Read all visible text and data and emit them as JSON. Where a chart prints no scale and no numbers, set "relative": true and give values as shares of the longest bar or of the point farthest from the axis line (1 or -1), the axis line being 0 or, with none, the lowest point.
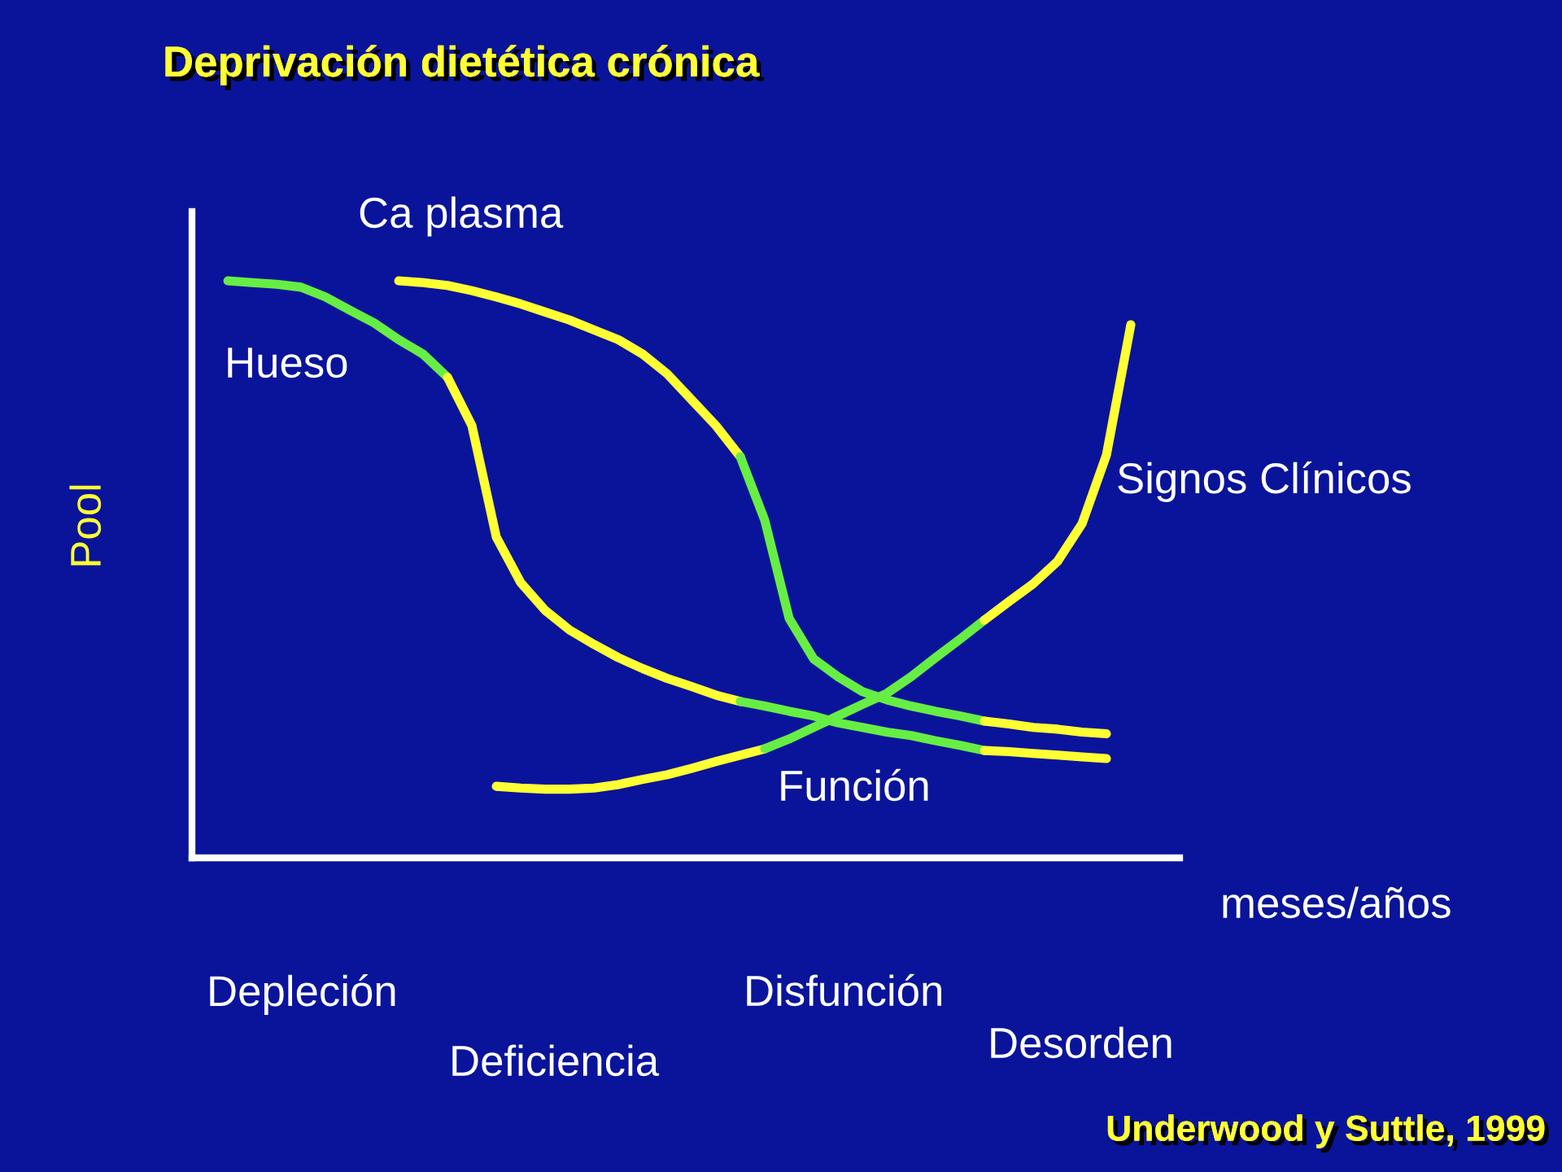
{
  "chart_data": {
    "type": "line",
    "relative": true,
    "title": "Deprivación dietética crónica",
    "xlabel": "meses/años",
    "ylabel": "Pool",
    "categories": [
      null,
      null,
      null,
      null,
      null,
      null,
      null,
      null,
      null,
      null,
      null,
      null,
      null,
      null,
      null,
      null,
      null,
      null,
      null,
      null,
      null,
      null,
      null,
      null,
      null,
      null,
      null,
      null,
      null,
      null,
      null,
      null,
      null,
      null,
      null,
      null,
      null,
      null
    ],
    "series": [
      {
        "color": "#66ee44",
        "values": [
          1.0,
          0.997,
          0.994,
          0.989,
          0.972,
          0.949,
          0.927,
          0.898,
          0.873,
          0.833,
          null,
          null,
          null,
          null,
          null,
          null,
          null,
          null,
          null,
          null,
          null,
          null,
          null,
          null,
          null,
          null,
          null,
          null,
          null,
          null,
          null,
          null,
          null,
          null,
          null,
          null,
          null,
          null
        ]
      },
      {
        "color": "#ffff33",
        "values": [
          null,
          null,
          null,
          null,
          null,
          null,
          null,
          null,
          null,
          0.833,
          0.749,
          0.556,
          0.477,
          0.429,
          0.395,
          0.37,
          0.347,
          0.328,
          0.311,
          0.297,
          0.282,
          0.271,
          null,
          null,
          null,
          null,
          null,
          null,
          null,
          null,
          null,
          null,
          null,
          null,
          null,
          null,
          null,
          null
        ]
      },
      {
        "color": "#66ee44",
        "values": [
          null,
          null,
          null,
          null,
          null,
          null,
          null,
          null,
          null,
          null,
          null,
          null,
          null,
          null,
          null,
          null,
          null,
          null,
          null,
          null,
          null,
          0.271,
          0.263,
          0.254,
          0.246,
          0.234,
          0.226,
          0.218,
          0.212,
          0.203,
          0.195,
          0.186,
          null,
          null,
          null,
          null,
          null,
          null
        ]
      },
      {
        "color": "#ffff33",
        "values": [
          null,
          null,
          null,
          null,
          null,
          null,
          null,
          null,
          null,
          null,
          null,
          null,
          null,
          null,
          null,
          null,
          null,
          null,
          null,
          null,
          null,
          null,
          null,
          null,
          null,
          null,
          null,
          null,
          null,
          null,
          null,
          0.186,
          0.184,
          0.181,
          0.178,
          0.175,
          0.172,
          null
        ]
      },
      {
        "color": "#ffff33",
        "values": [
          null,
          null,
          null,
          null,
          null,
          null,
          null,
          1.0,
          0.997,
          0.992,
          0.983,
          0.972,
          0.96,
          0.946,
          0.932,
          0.915,
          0.898,
          0.873,
          0.839,
          0.794,
          0.749,
          0.695,
          null,
          null,
          null,
          null,
          null,
          null,
          null,
          null,
          null,
          null,
          null,
          null,
          null,
          null,
          null,
          null
        ]
      },
      {
        "color": "#66ee44",
        "values": [
          null,
          null,
          null,
          null,
          null,
          null,
          null,
          null,
          null,
          null,
          null,
          null,
          null,
          null,
          null,
          null,
          null,
          null,
          null,
          null,
          null,
          0.695,
          0.585,
          0.415,
          0.345,
          0.314,
          0.288,
          0.274,
          0.263,
          0.254,
          0.246,
          0.237,
          null,
          null,
          null,
          null,
          null,
          null
        ]
      },
      {
        "color": "#ffff33",
        "values": [
          null,
          null,
          null,
          null,
          null,
          null,
          null,
          null,
          null,
          null,
          null,
          null,
          null,
          null,
          null,
          null,
          null,
          null,
          null,
          null,
          null,
          null,
          null,
          null,
          null,
          null,
          null,
          null,
          null,
          null,
          null,
          0.237,
          0.232,
          0.226,
          0.223,
          0.218,
          0.215,
          null
        ]
      },
      {
        "color": "#ffff33",
        "values": [
          null,
          null,
          null,
          null,
          null,
          null,
          null,
          null,
          null,
          null,
          null,
          0.124,
          0.121,
          0.119,
          0.119,
          0.121,
          0.127,
          0.136,
          0.144,
          0.155,
          0.167,
          0.178,
          0.189,
          null,
          null,
          null,
          null,
          null,
          null,
          null,
          null,
          null,
          null,
          null,
          null,
          null,
          null,
          null
        ]
      },
      {
        "color": "#66ee44",
        "values": [
          null,
          null,
          null,
          null,
          null,
          null,
          null,
          null,
          null,
          null,
          null,
          null,
          null,
          null,
          null,
          null,
          null,
          null,
          null,
          null,
          null,
          null,
          0.189,
          0.206,
          0.226,
          0.246,
          0.266,
          0.285,
          0.314,
          0.347,
          0.379,
          0.412,
          null,
          null,
          null,
          null,
          null,
          null
        ]
      },
      {
        "color": "#ffff33",
        "values": [
          null,
          null,
          null,
          null,
          null,
          null,
          null,
          null,
          null,
          null,
          null,
          null,
          null,
          null,
          null,
          null,
          null,
          null,
          null,
          null,
          null,
          null,
          null,
          null,
          null,
          null,
          null,
          null,
          null,
          null,
          null,
          0.412,
          0.444,
          0.475,
          0.514,
          0.579,
          0.698,
          0.924
        ]
      }
    ],
    "annotations": [
      "Ca plasma",
      "Hueso",
      "Signos Clínicos",
      "Función",
      "Depleción",
      "Deficiencia",
      "Disfunción",
      "Desorden",
      "Underwood y Suttle, 1999"
    ],
    "legend": false
  }
}
